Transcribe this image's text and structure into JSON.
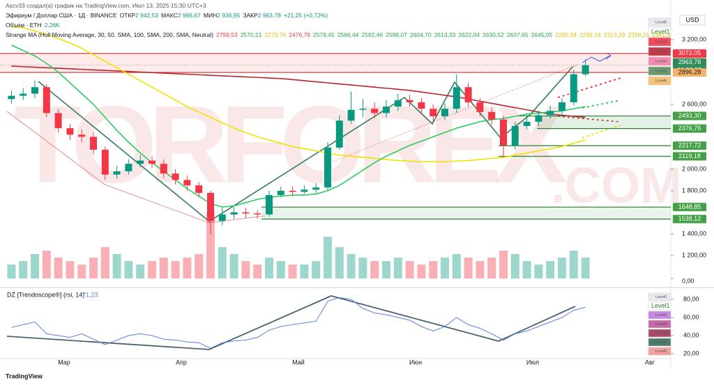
{
  "header": {
    "author": "Ascv33 создал(а) график на TradingView.com, Июл 13, 2025 15:30 UTC+3",
    "symbol": "Эфириум / Доллар США · 1Д · BINANCE",
    "ohlc": [
      {
        "label": "ОТКР",
        "value": "2 942,53"
      },
      {
        "label": "МАКС",
        "value": "2 966,67"
      },
      {
        "label": "МИН",
        "value": "2 936,95"
      },
      {
        "label": "ЗАКР",
        "value": "2 963,78"
      }
    ],
    "change": "+21,25 (+0,72%)",
    "volume_label": "Объем · ETH",
    "volume_value": "2,26K",
    "indicator": "Strange MA (Hull Moving Average, 30, 50, SMA, 100, SMA, 200, SMA, Neutral)",
    "indicator_values": [
      {
        "text": "2799,53",
        "color": "#f23645"
      },
      {
        "text": "2570,21",
        "color": "#22ab4a"
      },
      {
        "text": "2273,76",
        "color": "#e0c200"
      },
      {
        "text": "2476,79",
        "color": "#f23645"
      },
      {
        "text": "2578,45",
        "color": "#22ab4a"
      },
      {
        "text": "2586,44",
        "color": "#22ab4a"
      },
      {
        "text": "2592,46",
        "color": "#22ab4a"
      },
      {
        "text": "2598,07",
        "color": "#22ab4a"
      },
      {
        "text": "2604,70",
        "color": "#22ab4a"
      },
      {
        "text": "2613,33",
        "color": "#22ab4a"
      },
      {
        "text": "2622,04",
        "color": "#22ab4a"
      },
      {
        "text": "2630,52",
        "color": "#22ab4a"
      },
      {
        "text": "2637,65",
        "color": "#22ab4a"
      },
      {
        "text": "2645,05",
        "color": "#22ab4a"
      },
      {
        "text": "2285,34",
        "color": "#e0c200"
      },
      {
        "text": "2299,18",
        "color": "#e0c200"
      },
      {
        "text": "2313,29",
        "color": "#e0c200"
      },
      {
        "text": "2328,21",
        "color": "#e0c200"
      },
      {
        "text": "2341,9",
        "color": "#e0c200"
      }
    ]
  },
  "currency": "USD",
  "watermark": [
    "TORFOREX",
    ".COM"
  ],
  "logo": "TradingView",
  "price_badges": [
    {
      "label": "Level0",
      "color": "#e8e8f0"
    },
    {
      "label": "Level1",
      "color": "#ffffff"
    },
    {
      "label": "Level2",
      "color": "#f44b5c"
    },
    {
      "label": "Level3",
      "color": "#c23b48"
    },
    {
      "label": "Level4",
      "color": "#f28bb0"
    },
    {
      "label": "Level5",
      "color": "#6a9a70"
    },
    {
      "label": "Level6",
      "color": "#f7c27a"
    }
  ],
  "rsi_badges": [
    {
      "label": "Level0",
      "color": "#e8e8f0"
    },
    {
      "label": "Level1",
      "color": "#ffffff"
    },
    {
      "label": "Level2",
      "color": "#c58be0"
    },
    {
      "label": "Level3",
      "color": "#c56aa8"
    },
    {
      "label": "Level4",
      "color": "#a84a6a"
    },
    {
      "label": "Level5",
      "color": "#4a7d6a"
    },
    {
      "label": "Level6",
      "color": "#f4a0a0"
    }
  ],
  "chart_data": [
    {
      "type": "candlestick",
      "countdown": "11:29:39",
      "open": [
        2650,
        2680,
        2700,
        2760,
        2520,
        2380,
        2320,
        2300,
        2180,
        1950,
        1980,
        2050,
        2080,
        2050,
        1960,
        1900,
        1850,
        1780,
        1520,
        1580,
        1600,
        1590,
        1580,
        1760,
        1800,
        1790,
        1810,
        1830,
        2200,
        2450,
        2550,
        2560,
        2520,
        2580,
        2640,
        2620,
        2560,
        2490,
        2560,
        2760,
        2620,
        2530,
        2460,
        2220,
        2400,
        2440,
        2500,
        2540,
        2620,
        2880
      ],
      "high": [
        2730,
        2750,
        2820,
        2790,
        2560,
        2420,
        2370,
        2340,
        2210,
        2030,
        2090,
        2130,
        2120,
        2090,
        2000,
        1940,
        1880,
        1800,
        1650,
        1650,
        1640,
        1620,
        1800,
        1840,
        1840,
        1850,
        1870,
        2250,
        2500,
        2720,
        2650,
        2620,
        2640,
        2700,
        2690,
        2660,
        2600,
        2610,
        2880,
        2800,
        2660,
        2570,
        2500,
        2440,
        2490,
        2540,
        2590,
        2660,
        2920,
        3020
      ],
      "low": [
        2610,
        2640,
        2660,
        2480,
        2340,
        2270,
        2250,
        2140,
        1900,
        1910,
        1950,
        2020,
        2010,
        1920,
        1860,
        1800,
        1740,
        1400,
        1480,
        1540,
        1550,
        1540,
        1560,
        1740,
        1750,
        1770,
        1780,
        1800,
        2180,
        2420,
        2480,
        2470,
        2480,
        2540,
        2580,
        2520,
        2440,
        2450,
        2520,
        2580,
        2490,
        2410,
        2110,
        2180,
        2370,
        2400,
        2470,
        2500,
        2590,
        2860
      ],
      "close": [
        2680,
        2700,
        2760,
        2520,
        2380,
        2320,
        2300,
        2180,
        1950,
        1980,
        2050,
        2080,
        2050,
        1960,
        1900,
        1850,
        1780,
        1520,
        1580,
        1600,
        1590,
        1580,
        1760,
        1800,
        1790,
        1810,
        1830,
        2200,
        2450,
        2550,
        2560,
        2520,
        2580,
        2640,
        2620,
        2560,
        2490,
        2560,
        2760,
        2620,
        2530,
        2460,
        2220,
        2400,
        2440,
        2500,
        2540,
        2620,
        2880,
        2963.78
      ],
      "up_color": "#089981",
      "down_color": "#f23645",
      "series": [
        {
          "color": "#b8232f",
          "values": [
            2955,
            2950,
            2945,
            2940,
            2935,
            2930,
            2925,
            2920,
            2915,
            2910,
            2905,
            2900,
            2895,
            2890,
            2885,
            2880,
            2875,
            2870,
            2865,
            2860,
            2855,
            2850,
            2845,
            2840,
            2830,
            2820,
            2810,
            2800,
            2790,
            2780,
            2770,
            2760,
            2750,
            2740,
            2730,
            2715,
            2700,
            2685,
            2670,
            2650,
            2630,
            2610,
            2590,
            2570,
            2550,
            2530,
            2510,
            2500,
            2490,
            2480
          ]
        },
        {
          "color": "#f2e200",
          "values": [
            3320,
            3310,
            3280,
            3250,
            3210,
            3170,
            3120,
            3060,
            3000,
            2940,
            2880,
            2820,
            2760,
            2700,
            2640,
            2580,
            2530,
            2480,
            2430,
            2380,
            2340,
            2300,
            2270,
            2240,
            2210,
            2190,
            2170,
            2150,
            2130,
            2120,
            2110,
            2100,
            2090,
            2080,
            2075,
            2070,
            2070,
            2070,
            2075,
            2080,
            2090,
            2100,
            2110,
            2130,
            2150,
            2170,
            2190,
            2210,
            2240,
            2270
          ]
        },
        {
          "color": "#2ecc60",
          "values": [
            3150,
            3100,
            3050,
            2980,
            2900,
            2800,
            2700,
            2600,
            2480,
            2360,
            2250,
            2150,
            2060,
            1980,
            1900,
            1820,
            1750,
            1680,
            1650,
            1660,
            1690,
            1720,
            1740,
            1750,
            1760,
            1760,
            1770,
            1800,
            1850,
            1920,
            1990,
            2060,
            2120,
            2170,
            2220,
            2260,
            2300,
            2340,
            2380,
            2410,
            2440,
            2460,
            2470,
            2490,
            2510,
            2520,
            2530,
            2540,
            2560,
            2580
          ]
        }
      ],
      "levels": [
        {
          "value": 3072.05,
          "label": "3072,05",
          "color": "#f23645"
        },
        {
          "value": 2963.78,
          "label": "2963,78",
          "color": "#2e8b57"
        },
        {
          "value": 2896.28,
          "label": "2896,28",
          "color": "#f7b267"
        },
        {
          "value": 2493.3,
          "label": "2493,30",
          "color": "#43a047"
        },
        {
          "value": 2376.76,
          "label": "2376,76",
          "color": "#43a047"
        },
        {
          "value": 2217.72,
          "label": "2217,72",
          "color": "#43a047"
        },
        {
          "value": 2119.18,
          "label": "2119,18",
          "color": "#43a047"
        },
        {
          "value": 1648.85,
          "label": "1648,85",
          "color": "#43a047"
        },
        {
          "value": 1538.12,
          "label": "1538,12",
          "color": "#43a047"
        }
      ],
      "ylim": [
        1000,
        3400
      ],
      "yticks": [
        {
          "value": 3200,
          "label": "3 200,00"
        },
        {
          "value": 2600,
          "label": "2 600,00"
        },
        {
          "value": 2000,
          "label": "2 000,00"
        },
        {
          "value": 1800,
          "label": "1 800,00"
        },
        {
          "value": 1400,
          "label": "1 400,00"
        },
        {
          "value": 1200,
          "label": "1 200,00"
        }
      ]
    },
    {
      "type": "bar",
      "values": [
        20,
        25,
        35,
        40,
        30,
        25,
        20,
        30,
        45,
        35,
        25,
        20,
        25,
        30,
        25,
        30,
        35,
        95,
        45,
        35,
        25,
        20,
        30,
        25,
        20,
        20,
        25,
        60,
        45,
        35,
        30,
        25,
        25,
        30,
        25,
        20,
        25,
        30,
        35,
        30,
        25,
        30,
        40,
        35,
        25,
        20,
        25,
        30,
        40,
        30
      ],
      "ylim": [
        0,
        100
      ],
      "yticks": [
        {
          "value": 0,
          "label": "0,00"
        }
      ]
    },
    {
      "type": "line",
      "title": "DZ [Trendoscope®] (rsi, 14)",
      "current": {
        "value": 71.23,
        "label": "71,23"
      },
      "color": "#5b7fe0",
      "categories": [
        null,
        null,
        null,
        null,
        null,
        "Мар",
        null,
        null,
        null,
        null,
        null,
        null,
        null,
        null,
        null,
        "Апр",
        null,
        null,
        null,
        null,
        null,
        null,
        null,
        null,
        null,
        "Май",
        null,
        null,
        null,
        null,
        null,
        null,
        null,
        null,
        null,
        "Июн",
        null,
        null,
        null,
        null,
        null,
        null,
        null,
        null,
        null,
        "Июл",
        null,
        null,
        null,
        null,
        null,
        null,
        null,
        null,
        null,
        "Авг",
        null
      ],
      "values": [
        49,
        52,
        55,
        42,
        40,
        38,
        42,
        36,
        30,
        35,
        40,
        42,
        40,
        36,
        35,
        33,
        32,
        26,
        32,
        34,
        35,
        38,
        46,
        50,
        52,
        54,
        56,
        78,
        82,
        80,
        70,
        65,
        63,
        60,
        57,
        50,
        45,
        50,
        60,
        52,
        48,
        42,
        35,
        42,
        45,
        50,
        55,
        60,
        68,
        71.23,
        null,
        null,
        null,
        null,
        null,
        null,
        null
      ],
      "ylim": [
        14,
        90
      ],
      "yticks": [
        {
          "value": 80,
          "label": "80,00"
        },
        {
          "value": 60,
          "label": "60,00"
        },
        {
          "value": 40,
          "label": "40,00"
        },
        {
          "value": 20,
          "label": "20,00"
        }
      ]
    }
  ]
}
